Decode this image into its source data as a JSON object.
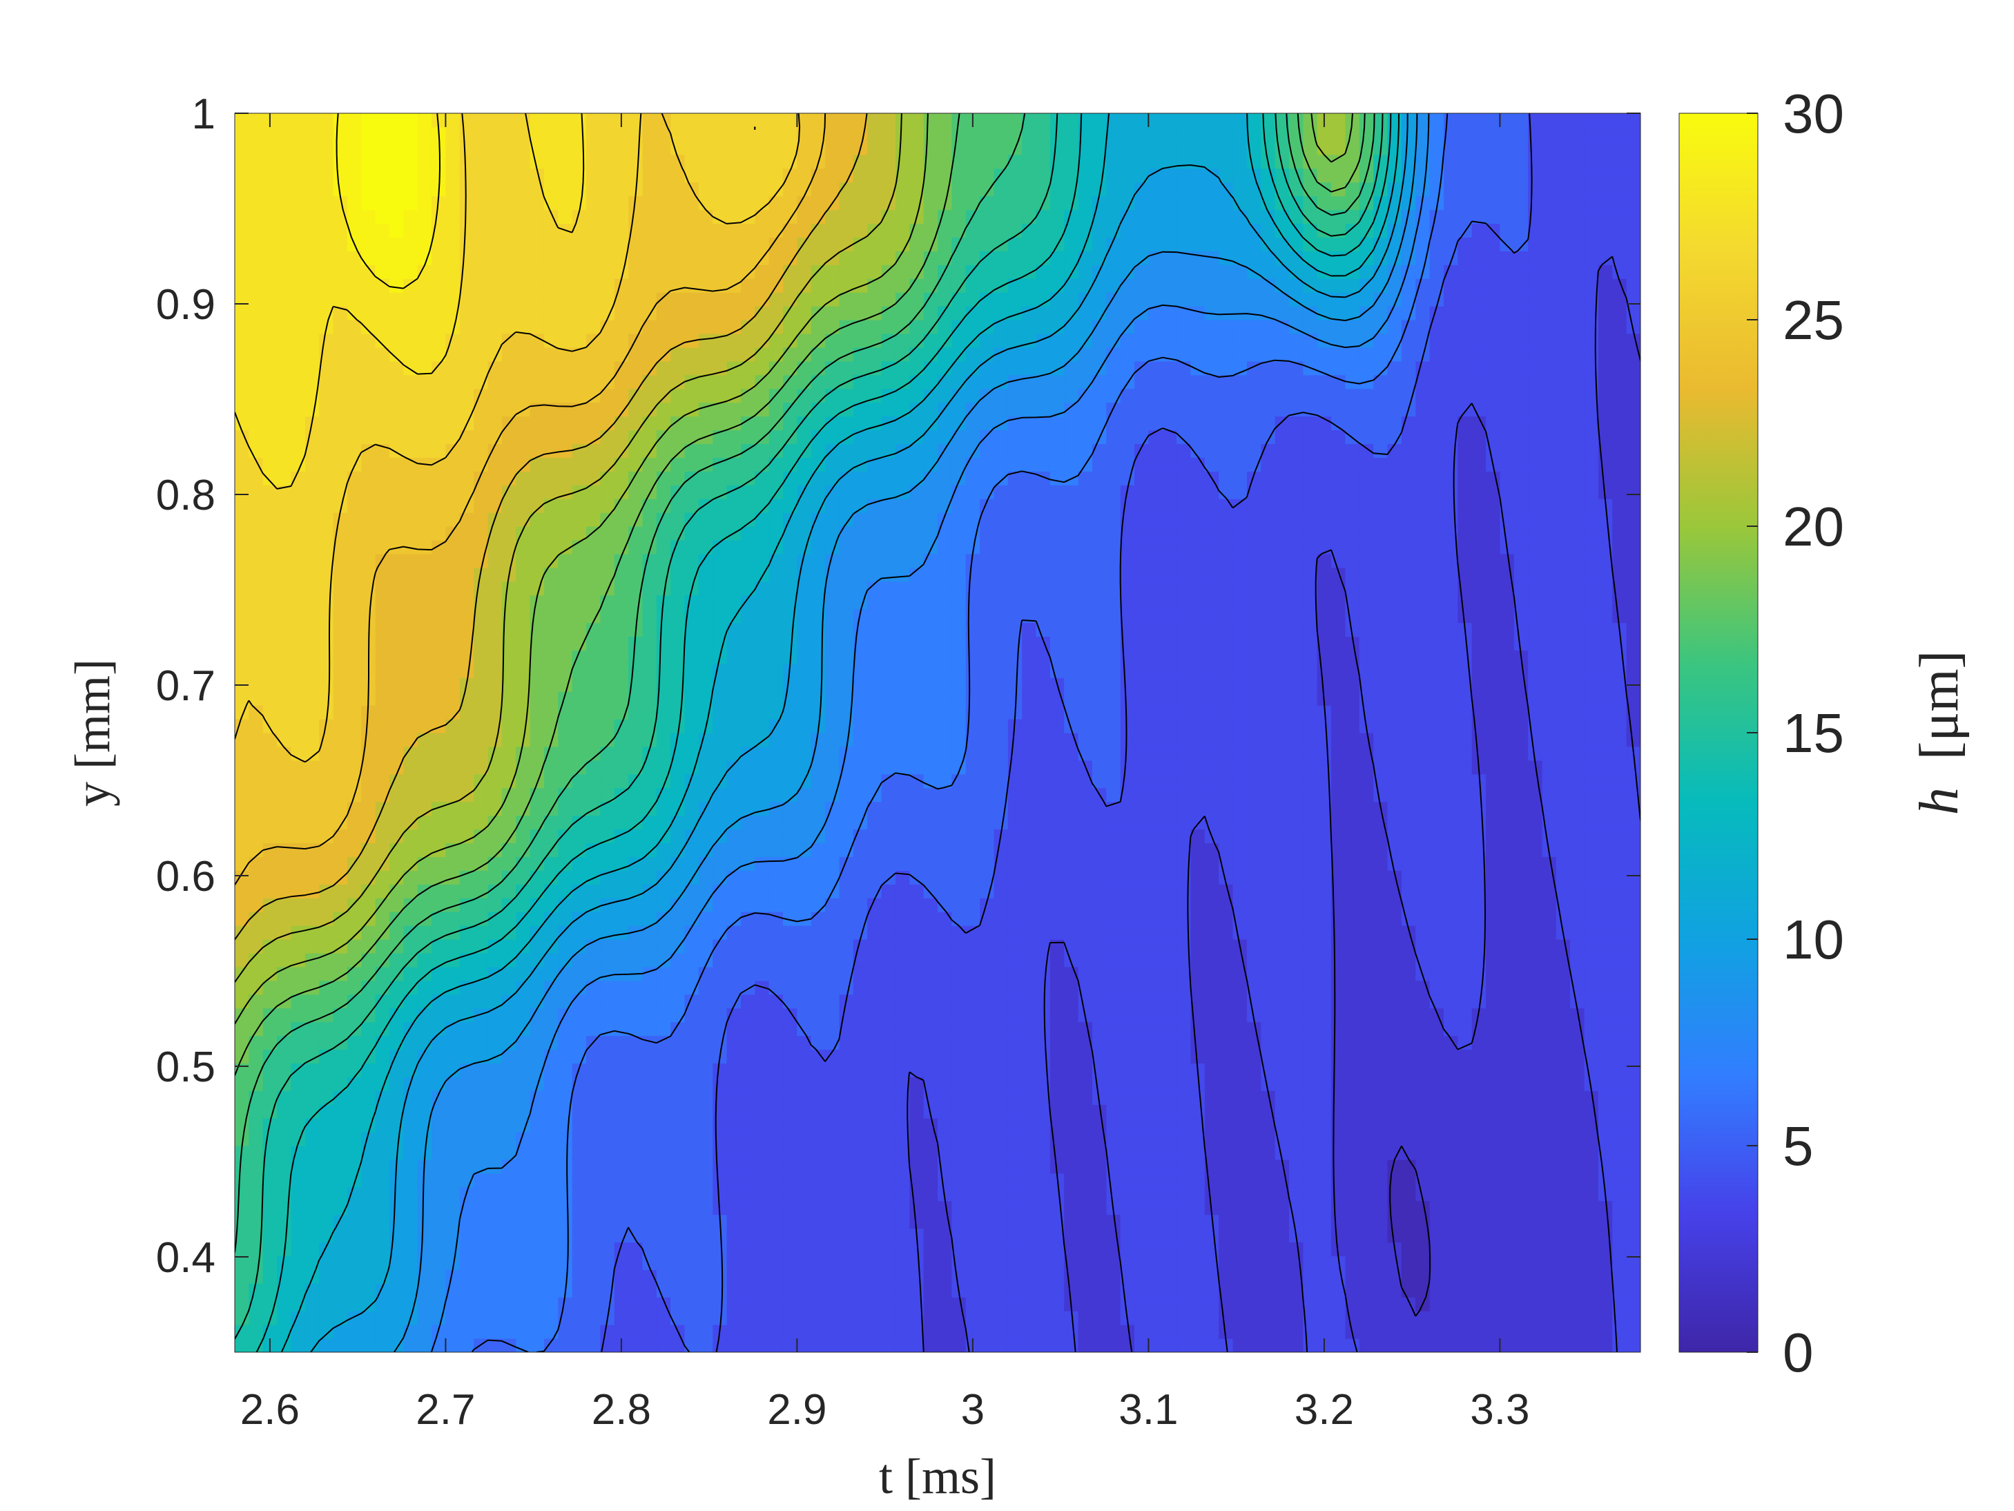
{
  "chart_data": {
    "type": "contour",
    "xlabel": "t [ms]",
    "ylabel": "y [mm]",
    "colorbar_label_symbol": "h",
    "colorbar_label_unit": "[μm]",
    "xlim": [
      2.58,
      3.38
    ],
    "ylim": [
      0.35,
      1.0
    ],
    "xticks": [
      2.6,
      2.7,
      2.8,
      2.9,
      3.0,
      3.1,
      3.2,
      3.3
    ],
    "xtick_labels": [
      "2.6",
      "2.7",
      "2.8",
      "2.9",
      "3",
      "3.1",
      "3.2",
      "3.3"
    ],
    "yticks": [
      0.4,
      0.5,
      0.6,
      0.7,
      0.8,
      0.9,
      1.0
    ],
    "ytick_labels": [
      "0.4",
      "0.5",
      "0.6",
      "0.7",
      "0.8",
      "0.9",
      "1"
    ],
    "clim": [
      0,
      30
    ],
    "colorbar_ticks": [
      0,
      5,
      10,
      15,
      20,
      25,
      30
    ],
    "colorbar_tick_labels": [
      "0",
      "5",
      "10",
      "15",
      "20",
      "25",
      "30"
    ],
    "contour_levels_step": 1.5,
    "colormap": "parula",
    "colormap_stops": [
      "#3e26a8",
      "#4641e9",
      "#327dff",
      "#10a2e1",
      "#07bbbc",
      "#3bc57f",
      "#9bc73a",
      "#eaba30",
      "#f4d92f",
      "#f9fb0e"
    ],
    "grid": false,
    "features": [
      {
        "description": "peak",
        "t": 2.665,
        "y": 0.98,
        "h": 29
      },
      {
        "description": "high ridge",
        "t": 2.6,
        "y": 0.85,
        "h": 25
      },
      {
        "description": "secondary peak",
        "t": 3.205,
        "y": 0.99,
        "h": 20
      },
      {
        "description": "minimum",
        "t": 3.27,
        "y": 0.4,
        "h": 2
      }
    ]
  }
}
